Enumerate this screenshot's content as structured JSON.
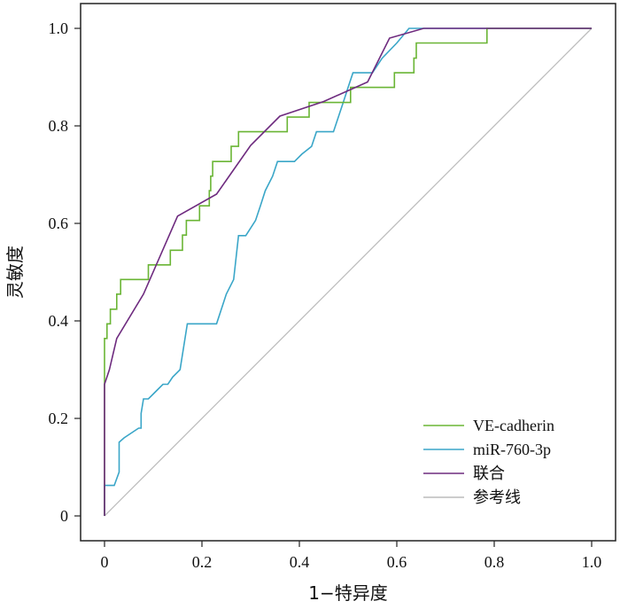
{
  "chart_data": {
    "type": "line",
    "title": "",
    "xlabel": "1−特异度",
    "ylabel": "灵敏度",
    "xlim": [
      0,
      1
    ],
    "ylim": [
      0,
      1
    ],
    "x_ticks": [
      "0",
      "0.2",
      "0.4",
      "0.6",
      "0.8",
      "1.0"
    ],
    "y_ticks": [
      "0",
      "0.2",
      "0.4",
      "0.6",
      "0.8",
      "1.0"
    ],
    "grid": false,
    "legend_position": "bottom-right",
    "series": [
      {
        "name": "VE-cadherin",
        "color": "#6ab535",
        "points": [
          [
            0,
            0
          ],
          [
            0,
            0.364
          ],
          [
            0.005,
            0.364
          ],
          [
            0.005,
            0.394
          ],
          [
            0.012,
            0.394
          ],
          [
            0.012,
            0.424
          ],
          [
            0.025,
            0.424
          ],
          [
            0.025,
            0.455
          ],
          [
            0.033,
            0.455
          ],
          [
            0.033,
            0.485
          ],
          [
            0.09,
            0.485
          ],
          [
            0.09,
            0.515
          ],
          [
            0.135,
            0.515
          ],
          [
            0.135,
            0.545
          ],
          [
            0.16,
            0.545
          ],
          [
            0.16,
            0.576
          ],
          [
            0.168,
            0.576
          ],
          [
            0.168,
            0.606
          ],
          [
            0.195,
            0.606
          ],
          [
            0.195,
            0.636
          ],
          [
            0.215,
            0.636
          ],
          [
            0.215,
            0.667
          ],
          [
            0.218,
            0.667
          ],
          [
            0.218,
            0.697
          ],
          [
            0.222,
            0.697
          ],
          [
            0.222,
            0.727
          ],
          [
            0.26,
            0.727
          ],
          [
            0.26,
            0.758
          ],
          [
            0.275,
            0.758
          ],
          [
            0.275,
            0.788
          ],
          [
            0.375,
            0.788
          ],
          [
            0.375,
            0.818
          ],
          [
            0.42,
            0.818
          ],
          [
            0.42,
            0.848
          ],
          [
            0.505,
            0.848
          ],
          [
            0.505,
            0.879
          ],
          [
            0.545,
            0.879
          ],
          [
            0.545,
            0.879
          ],
          [
            0.595,
            0.879
          ],
          [
            0.595,
            0.909
          ],
          [
            0.635,
            0.909
          ],
          [
            0.635,
            0.939
          ],
          [
            0.64,
            0.939
          ],
          [
            0.64,
            0.97
          ],
          [
            0.785,
            0.97
          ],
          [
            0.785,
            1.0
          ],
          [
            1.0,
            1.0
          ]
        ]
      },
      {
        "name": "miR-760-3p",
        "color": "#3aa6c8",
        "points": [
          [
            0,
            0
          ],
          [
            0,
            0.0625
          ],
          [
            0.01,
            0.0625
          ],
          [
            0.02,
            0.0625
          ],
          [
            0.03,
            0.09
          ],
          [
            0.03,
            0.151
          ],
          [
            0.04,
            0.16
          ],
          [
            0.07,
            0.18
          ],
          [
            0.075,
            0.18
          ],
          [
            0.075,
            0.21
          ],
          [
            0.08,
            0.24
          ],
          [
            0.09,
            0.24
          ],
          [
            0.1,
            0.25
          ],
          [
            0.11,
            0.26
          ],
          [
            0.12,
            0.27
          ],
          [
            0.13,
            0.27
          ],
          [
            0.14,
            0.285
          ],
          [
            0.155,
            0.3
          ],
          [
            0.17,
            0.394
          ],
          [
            0.2,
            0.394
          ],
          [
            0.23,
            0.394
          ],
          [
            0.25,
            0.455
          ],
          [
            0.265,
            0.485
          ],
          [
            0.275,
            0.575
          ],
          [
            0.29,
            0.575
          ],
          [
            0.31,
            0.606
          ],
          [
            0.32,
            0.636
          ],
          [
            0.33,
            0.667
          ],
          [
            0.345,
            0.697
          ],
          [
            0.355,
            0.727
          ],
          [
            0.39,
            0.727
          ],
          [
            0.405,
            0.742
          ],
          [
            0.425,
            0.758
          ],
          [
            0.435,
            0.788
          ],
          [
            0.47,
            0.788
          ],
          [
            0.48,
            0.818
          ],
          [
            0.49,
            0.848
          ],
          [
            0.5,
            0.879
          ],
          [
            0.51,
            0.909
          ],
          [
            0.55,
            0.909
          ],
          [
            0.57,
            0.939
          ],
          [
            0.6,
            0.97
          ],
          [
            0.625,
            1.0
          ],
          [
            1.0,
            1.0
          ]
        ]
      },
      {
        "name": "联合",
        "color": "#6e2b7f",
        "points": [
          [
            0,
            0
          ],
          [
            0,
            0.238
          ],
          [
            0,
            0.27
          ],
          [
            0.01,
            0.3
          ],
          [
            0.025,
            0.364
          ],
          [
            0.08,
            0.455
          ],
          [
            0.15,
            0.615
          ],
          [
            0.23,
            0.66
          ],
          [
            0.3,
            0.76
          ],
          [
            0.36,
            0.82
          ],
          [
            0.45,
            0.85
          ],
          [
            0.54,
            0.89
          ],
          [
            0.585,
            0.98
          ],
          [
            0.655,
            1.0
          ],
          [
            1.0,
            1.0
          ]
        ]
      },
      {
        "name": "参考线",
        "color": "#bcbcbc",
        "points": [
          [
            0,
            0
          ],
          [
            1,
            1
          ]
        ]
      }
    ]
  }
}
